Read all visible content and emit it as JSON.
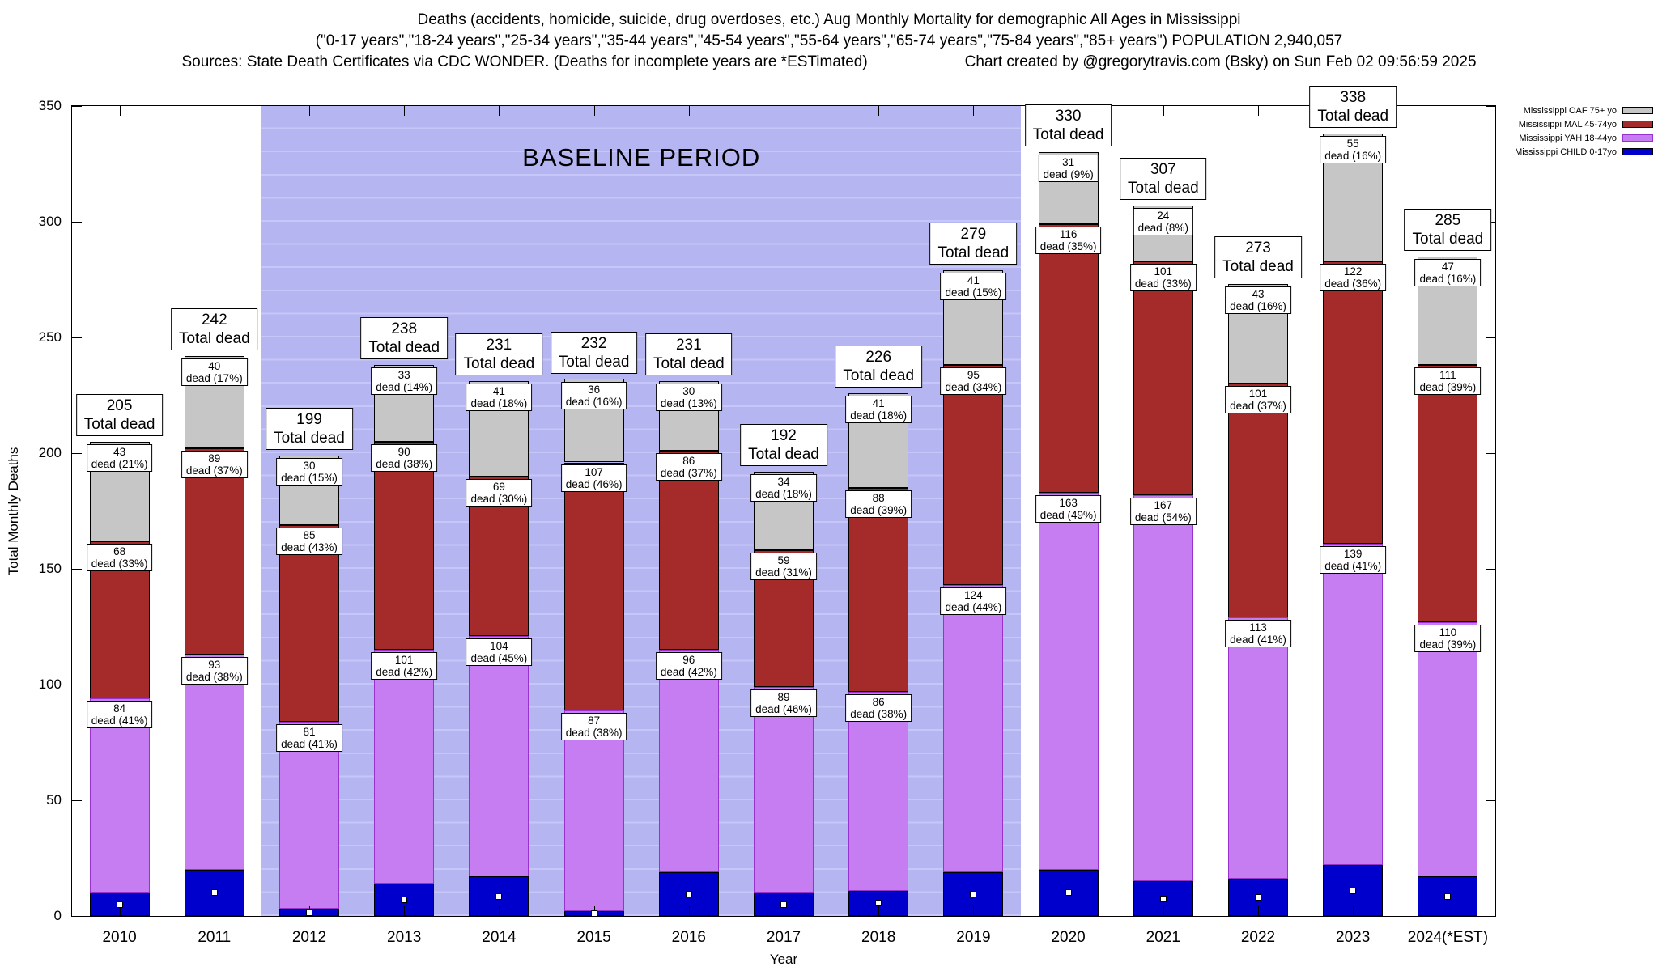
{
  "title": {
    "line1": "Deaths (accidents, homicide, suicide, drug overdoses, etc.) Aug Monthly Mortality for demographic All Ages in Mississippi",
    "line2": "(\"0-17 years\",\"18-24 years\",\"25-34 years\",\"35-44 years\",\"45-54 years\",\"55-64 years\",\"65-74 years\",\"75-84 years\",\"85+ years\") POPULATION 2,940,057",
    "line3_left": "Sources: State Death Certificates via CDC WONDER. (Deaths for incomplete years are *ESTimated)",
    "line3_right": "Chart created by @gregorytravis.com (Bsky) on Sun Feb 02 09:56:59 2025"
  },
  "chart_data": {
    "type": "bar",
    "stacked": true,
    "title": "Aug Monthly Mortality for demographic All Ages in Mississippi",
    "xlabel": "Year",
    "ylabel": "Total Monthly Deaths",
    "ylim": [
      0,
      350
    ],
    "yticks": [
      0,
      50,
      100,
      150,
      200,
      250,
      300,
      350
    ],
    "grid": false,
    "legend_position": "top-right-outside",
    "categories": [
      "2010",
      "2011",
      "2012",
      "2013",
      "2014",
      "2015",
      "2016",
      "2017",
      "2018",
      "2019",
      "2020",
      "2021",
      "2022",
      "2023",
      "2024(*EST)"
    ],
    "series": [
      {
        "key": "child",
        "name": "Mississippi CHILD 0-17yo",
        "fill": "#0000cc",
        "border": "#000000",
        "show_value_labels": false,
        "values": [
          10,
          20,
          3,
          14,
          17,
          2,
          19,
          10,
          11,
          19,
          20,
          15,
          16,
          22,
          17
        ]
      },
      {
        "key": "yah",
        "name": "Mississippi YAH 18-44yo",
        "fill": "#c57df1",
        "border": "#9932cc",
        "show_value_labels": true,
        "values": [
          84,
          93,
          81,
          101,
          104,
          87,
          96,
          89,
          86,
          124,
          163,
          167,
          113,
          139,
          110
        ],
        "labels": [
          "dead (41%)",
          "dead (38%)",
          "dead (41%)",
          "dead (42%)",
          "dead (45%)",
          "dead (38%)",
          "dead (42%)",
          "dead (46%)",
          "dead (38%)",
          "dead (44%)",
          "dead (49%)",
          "dead (54%)",
          "dead (41%)",
          "dead (41%)",
          "dead (39%)"
        ]
      },
      {
        "key": "mal",
        "name": "Mississippi MAL 45-74yo",
        "fill": "#a52a2a",
        "border": "#000000",
        "show_value_labels": true,
        "values": [
          68,
          89,
          85,
          90,
          69,
          107,
          86,
          59,
          88,
          95,
          116,
          101,
          101,
          122,
          111
        ],
        "labels": [
          "dead (33%)",
          "dead (37%)",
          "dead (43%)",
          "dead (38%)",
          "dead (30%)",
          "dead (46%)",
          "dead (37%)",
          "dead (31%)",
          "dead (39%)",
          "dead (34%)",
          "dead (35%)",
          "dead (33%)",
          "dead (37%)",
          "dead (36%)",
          "dead (39%)"
        ]
      },
      {
        "key": "oaf",
        "name": "Mississippi OAF 75+ yo",
        "fill": "#c6c6c6",
        "border": "#000000",
        "show_value_labels": true,
        "values": [
          43,
          40,
          30,
          33,
          41,
          36,
          30,
          34,
          41,
          41,
          31,
          24,
          43,
          55,
          47
        ],
        "labels": [
          "dead (21%)",
          "dead (17%)",
          "dead (15%)",
          "dead (14%)",
          "dead (18%)",
          "dead (16%)",
          "dead (13%)",
          "dead (18%)",
          "dead (18%)",
          "dead (15%)",
          "dead (9%)",
          "dead (8%)",
          "dead (16%)",
          "dead (16%)",
          "dead (16%)"
        ]
      }
    ],
    "totals": [
      205,
      242,
      199,
      238,
      231,
      232,
      231,
      192,
      226,
      279,
      330,
      307,
      273,
      338,
      285
    ],
    "total_label_suffix": "Total dead",
    "baseline": {
      "label": "BASELINE PERIOD",
      "from": "2012",
      "to": "2019",
      "fill": "#b5b5f1",
      "stripe": "#c6c6f8"
    },
    "legend": [
      {
        "label": "Mississippi OAF 75+ yo",
        "fill": "#c6c6c6",
        "border": "#000000"
      },
      {
        "label": "Mississippi MAL 45-74yo",
        "fill": "#a52a2a",
        "border": "#000000"
      },
      {
        "label": "Mississippi YAH 18-44yo",
        "fill": "#c57df1",
        "border": "#9932cc"
      },
      {
        "label": "Mississippi CHILD 0-17yo",
        "fill": "#0000cc",
        "border": "#000000"
      }
    ]
  }
}
